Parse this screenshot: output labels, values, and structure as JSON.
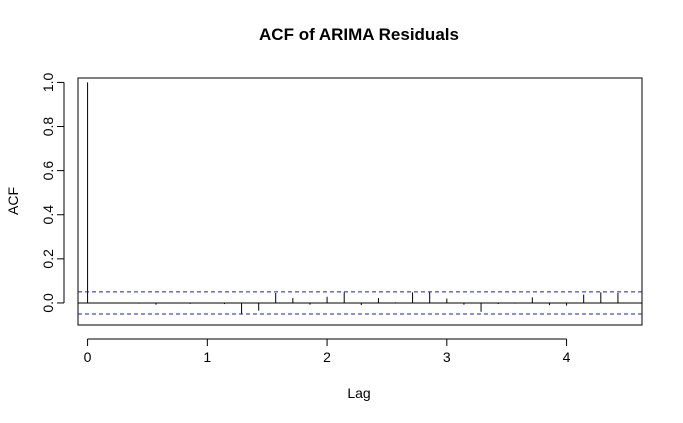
{
  "chart_data": {
    "type": "bar",
    "title": "ACF of ARIMA Residuals",
    "xlabel": "Lag",
    "ylabel": "ACF",
    "xlim": [
      -0.08,
      4.63
    ],
    "ylim": [
      -0.1,
      1.02
    ],
    "x_ticks": [
      "0",
      "1",
      "2",
      "3",
      "4"
    ],
    "y_ticks": [
      "0.0",
      "0.2",
      "0.4",
      "0.6",
      "0.8",
      "1.0"
    ],
    "confidence_bound": 0.05,
    "lags": [
      0.0,
      0.143,
      0.286,
      0.429,
      0.571,
      0.714,
      0.857,
      1.0,
      1.143,
      1.286,
      1.429,
      1.571,
      1.714,
      1.857,
      2.0,
      2.143,
      2.286,
      2.429,
      2.571,
      2.714,
      2.857,
      3.0,
      3.143,
      3.286,
      3.429,
      3.571,
      3.714,
      3.857,
      4.0,
      4.143,
      4.286,
      4.429
    ],
    "values": [
      1.0,
      -0.002,
      0.001,
      -0.003,
      -0.008,
      0.002,
      -0.004,
      0.001,
      -0.005,
      -0.052,
      -0.035,
      0.045,
      0.022,
      -0.008,
      0.028,
      0.048,
      -0.01,
      0.022,
      0.003,
      0.048,
      0.05,
      0.02,
      -0.008,
      -0.04,
      -0.005,
      -0.003,
      0.025,
      -0.01,
      -0.012,
      0.038,
      0.048,
      0.045
    ]
  }
}
